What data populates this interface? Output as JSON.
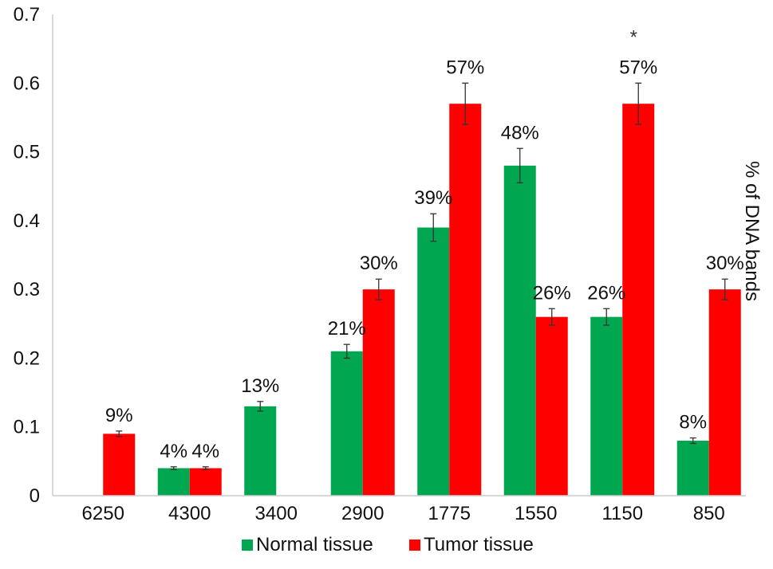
{
  "chart_data": {
    "type": "bar",
    "title": "",
    "xlabel": "",
    "ylabel": "% of DNA bands",
    "ylim": [
      0,
      0.7
    ],
    "yticks": [
      "0",
      "0.1",
      "0.2",
      "0.3",
      "0.4",
      "0.5",
      "0.6",
      "0.7"
    ],
    "ytick_values": [
      0,
      0.1,
      0.2,
      0.3,
      0.4,
      0.5,
      0.6,
      0.7
    ],
    "categories": [
      "6250",
      "4300",
      "3400",
      "2900",
      "1775",
      "1550",
      "1150",
      "850"
    ],
    "grid": false,
    "legend_position": "bottom",
    "series": [
      {
        "name": "Normal tissue",
        "color": "#00a650",
        "values": [
          0,
          0.04,
          0.13,
          0.21,
          0.39,
          0.48,
          0.26,
          0.08
        ],
        "errors": [
          0,
          0.002,
          0.007,
          0.01,
          0.02,
          0.025,
          0.012,
          0.004
        ],
        "labels": [
          "",
          "4%",
          "13%",
          "21%",
          "39%",
          "48%",
          "26%",
          "8%"
        ]
      },
      {
        "name": "Tumor tissue",
        "color": "#ff0000",
        "values": [
          0.09,
          0.04,
          0,
          0.3,
          0.57,
          0.26,
          0.57,
          0.3
        ],
        "errors": [
          0.004,
          0.002,
          0,
          0.015,
          0.03,
          0.012,
          0.03,
          0.015
        ],
        "labels": [
          "9%",
          "4%",
          "",
          "30%",
          "57%",
          "26%",
          "57%",
          "30%"
        ]
      }
    ],
    "annotations": [
      {
        "text": "*",
        "category": "1150",
        "series": "Tumor tissue"
      }
    ]
  }
}
